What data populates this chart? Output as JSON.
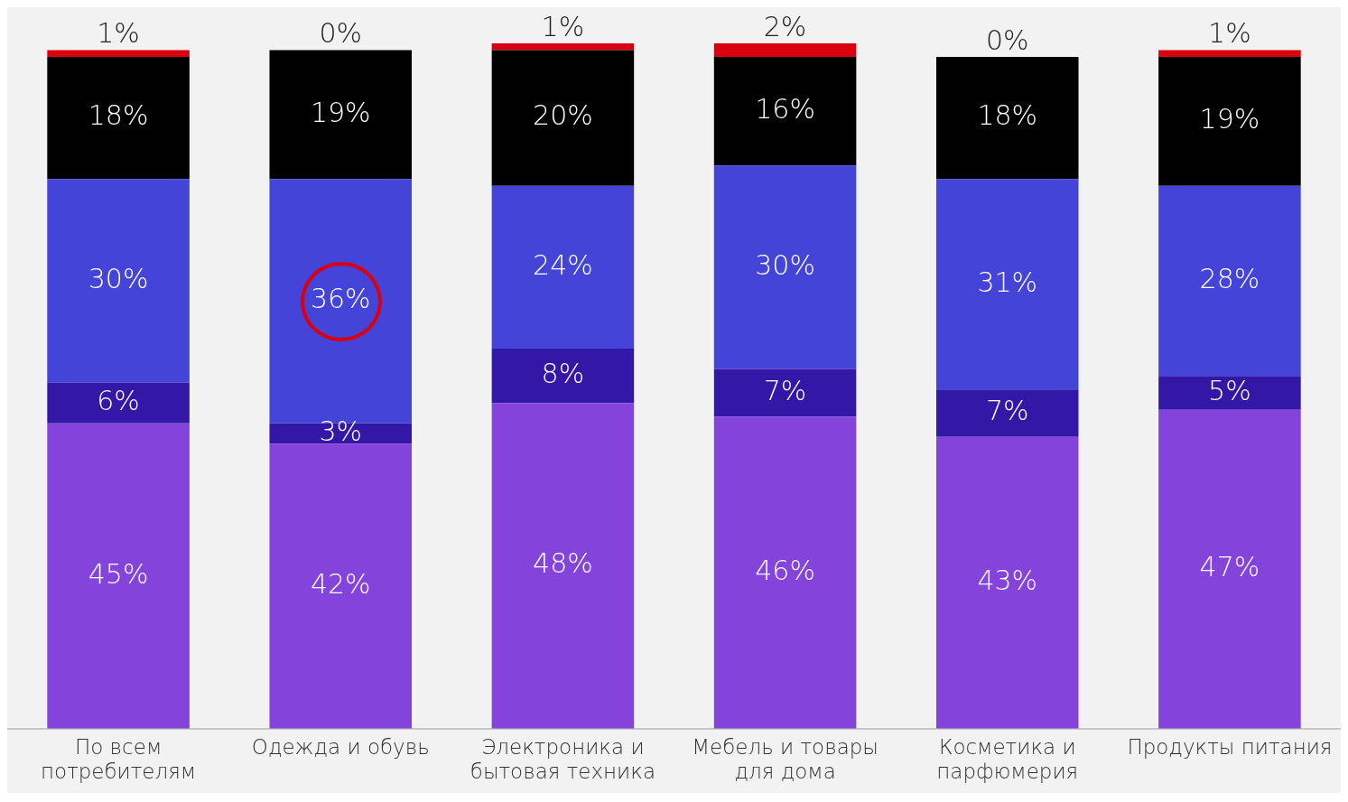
{
  "chart_data": {
    "type": "bar",
    "stacked": true,
    "legend": false,
    "grid": false,
    "categories": [
      "По всем потребителям",
      "Одежда и обувь",
      "Электроника и бытовая техника",
      "Мебель и товары для дома",
      "Косметика и парфюмерия",
      "Продукты питания"
    ],
    "series": [
      {
        "color": "#8444dc",
        "values": [
          45,
          42,
          48,
          46,
          43,
          47
        ],
        "value_labels": [
          "45%",
          "42%",
          "48%",
          "46%",
          "43%",
          "47%"
        ]
      },
      {
        "color": "#3318a8",
        "values": [
          6,
          3,
          8,
          7,
          7,
          5
        ],
        "value_labels": [
          "6%",
          "3%",
          "8%",
          "7%",
          "7%",
          "5%"
        ]
      },
      {
        "color": "#4444d8",
        "values": [
          30,
          36,
          24,
          30,
          31,
          28
        ],
        "value_labels": [
          "30%",
          "36%",
          "24%",
          "30%",
          "31%",
          "28%"
        ]
      },
      {
        "color": "#000000",
        "values": [
          18,
          19,
          20,
          16,
          18,
          19
        ],
        "value_labels": [
          "18%",
          "19%",
          "20%",
          "16%",
          "18%",
          "19%"
        ]
      },
      {
        "color": "#d9000f",
        "values": [
          1,
          0,
          1,
          2,
          0,
          1
        ],
        "value_labels": [
          "1%",
          "0%",
          "1%",
          "2%",
          "0%",
          "1%"
        ]
      }
    ]
  }
}
